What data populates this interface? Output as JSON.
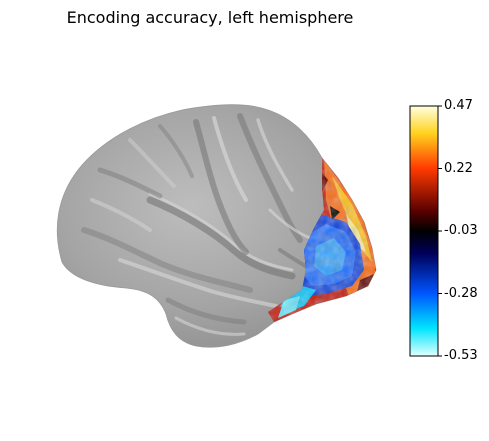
{
  "figure": {
    "title": "Encoding accuracy, left hemisphere",
    "view": "left lateral inflated cortical surface",
    "background_color": "#ffffff"
  },
  "colorbar": {
    "colormap": "cold_hot",
    "vmin": -0.53,
    "vmax": 0.47,
    "tick_labels": [
      "0.47",
      "0.22",
      "-0.03",
      "-0.28",
      "-0.53"
    ],
    "tick_values": [
      0.47,
      0.22,
      -0.03,
      -0.28,
      -0.53
    ],
    "stops": [
      {
        "value": 0.47,
        "color": "#ffffe0"
      },
      {
        "value": 0.36,
        "color": "#ffd21e"
      },
      {
        "value": 0.22,
        "color": "#ff3a00"
      },
      {
        "value": 0.05,
        "color": "#5a0000"
      },
      {
        "value": -0.03,
        "color": "#000000"
      },
      {
        "value": -0.12,
        "color": "#00005a"
      },
      {
        "value": -0.28,
        "color": "#0055ff"
      },
      {
        "value": -0.42,
        "color": "#00e5ff"
      },
      {
        "value": -0.53,
        "color": "#e0ffff"
      }
    ]
  },
  "brain": {
    "hemisphere": "left",
    "surface_color": "#a3a3a3",
    "overlay_region": "occipital / visual cortex",
    "positive_color": "#e83a0c",
    "negative_color": "#1e5cff"
  }
}
